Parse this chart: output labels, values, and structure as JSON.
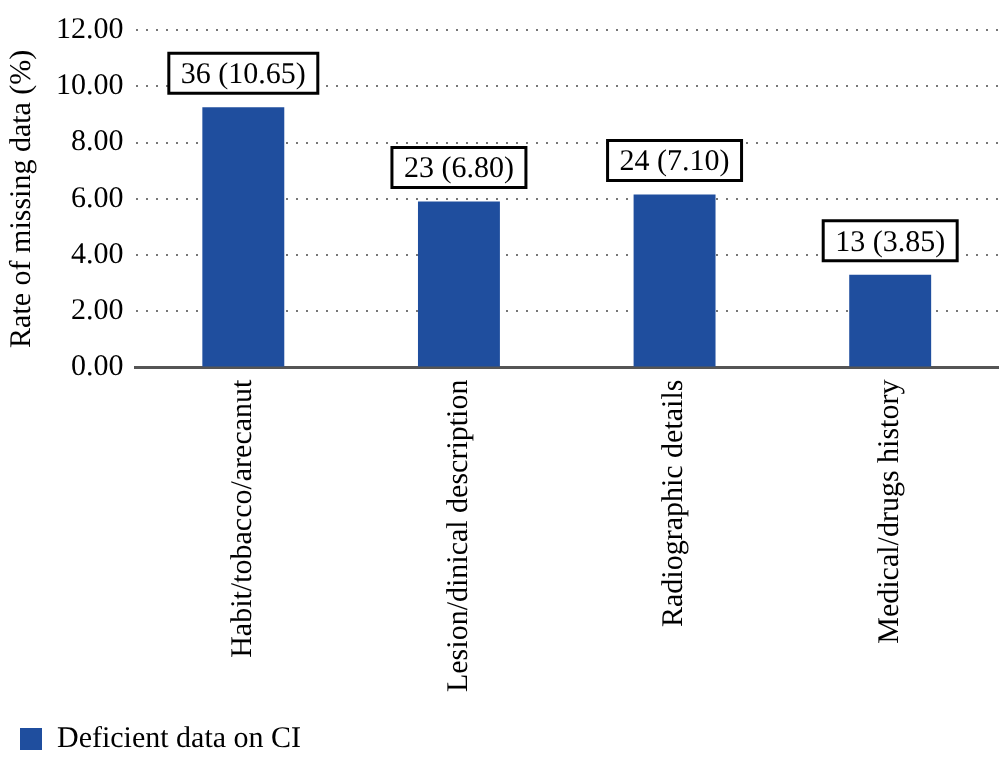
{
  "chart_data": {
    "type": "bar",
    "ylabel": "Rate of missing data (%)",
    "categories": [
      "Habit/tobacco/arecanut",
      "Lesion/dinical description",
      "Radiographic details",
      "Medical/drugs history"
    ],
    "series": [
      {
        "name": "Deficient data on CI",
        "color": "#1f4e9e",
        "values": [
          9.25,
          5.9,
          6.15,
          3.3
        ]
      }
    ],
    "annotations": [
      {
        "text": "36 (10.65)",
        "x": "Habit/tobacco/arecanut",
        "y": 9.25
      },
      {
        "text": "23 (6.80)",
        "x": "Lesion/dinical description",
        "y": 5.9
      },
      {
        "text": "24 (7.10)",
        "x": "Radiographic details",
        "y": 6.15
      },
      {
        "text": "13 (3.85)",
        "x": "Medical/drugs history",
        "y": 3.3
      }
    ],
    "ylim": [
      0,
      12
    ],
    "yticks": [
      {
        "value": 0,
        "label": "0.00"
      },
      {
        "value": 2,
        "label": "2.00"
      },
      {
        "value": 4,
        "label": "4.00"
      },
      {
        "value": 6,
        "label": "6.00"
      },
      {
        "value": 8,
        "label": "8.00"
      },
      {
        "value": 10,
        "label": "10.00"
      },
      {
        "value": 12,
        "label": "12.00"
      }
    ],
    "grid": "y",
    "legend": "bottom left"
  }
}
